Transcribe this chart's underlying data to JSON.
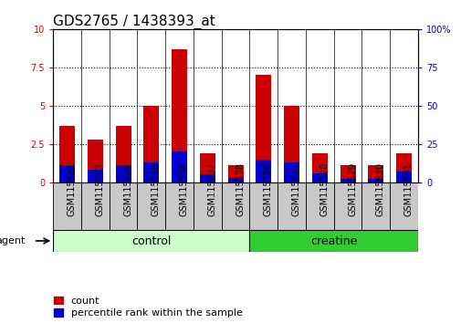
{
  "title": "GDS2765 / 1438393_at",
  "samples": [
    "GSM115532",
    "GSM115533",
    "GSM115534",
    "GSM115535",
    "GSM115536",
    "GSM115537",
    "GSM115538",
    "GSM115526",
    "GSM115527",
    "GSM115528",
    "GSM115529",
    "GSM115530",
    "GSM115531"
  ],
  "count_values": [
    3.7,
    2.8,
    3.7,
    5.0,
    8.7,
    1.9,
    1.1,
    7.0,
    5.0,
    1.9,
    1.1,
    1.1,
    1.9
  ],
  "percentile_values": [
    11,
    8,
    11,
    13,
    20,
    5,
    3,
    15,
    13,
    6,
    2,
    2,
    7
  ],
  "groups": [
    {
      "label": "control",
      "start": 0,
      "end": 7
    },
    {
      "label": "creatine",
      "start": 7,
      "end": 13
    }
  ],
  "bar_color_count": "#cc0000",
  "bar_color_pct": "#0000cc",
  "ylim_left": [
    0,
    10
  ],
  "ylim_right": [
    0,
    100
  ],
  "yticks_left": [
    0,
    2.5,
    5.0,
    7.5,
    10
  ],
  "yticks_right": [
    0,
    25,
    50,
    75,
    100
  ],
  "ytick_labels_left": [
    "0",
    "2.5",
    "5",
    "7.5",
    "10"
  ],
  "ytick_labels_right": [
    "0",
    "25",
    "50",
    "75",
    "100%"
  ],
  "agent_label": "agent",
  "bar_width": 0.55,
  "title_fontsize": 11,
  "tick_fontsize": 7,
  "legend_fontsize": 8,
  "group_label_fontsize": 9,
  "sample_label_fontsize": 7,
  "plot_bg": "#ffffff",
  "label_box_bg": "#c8c8c8",
  "group_box_color_control": "#ccffcc",
  "group_box_color_creatine": "#33cc33"
}
